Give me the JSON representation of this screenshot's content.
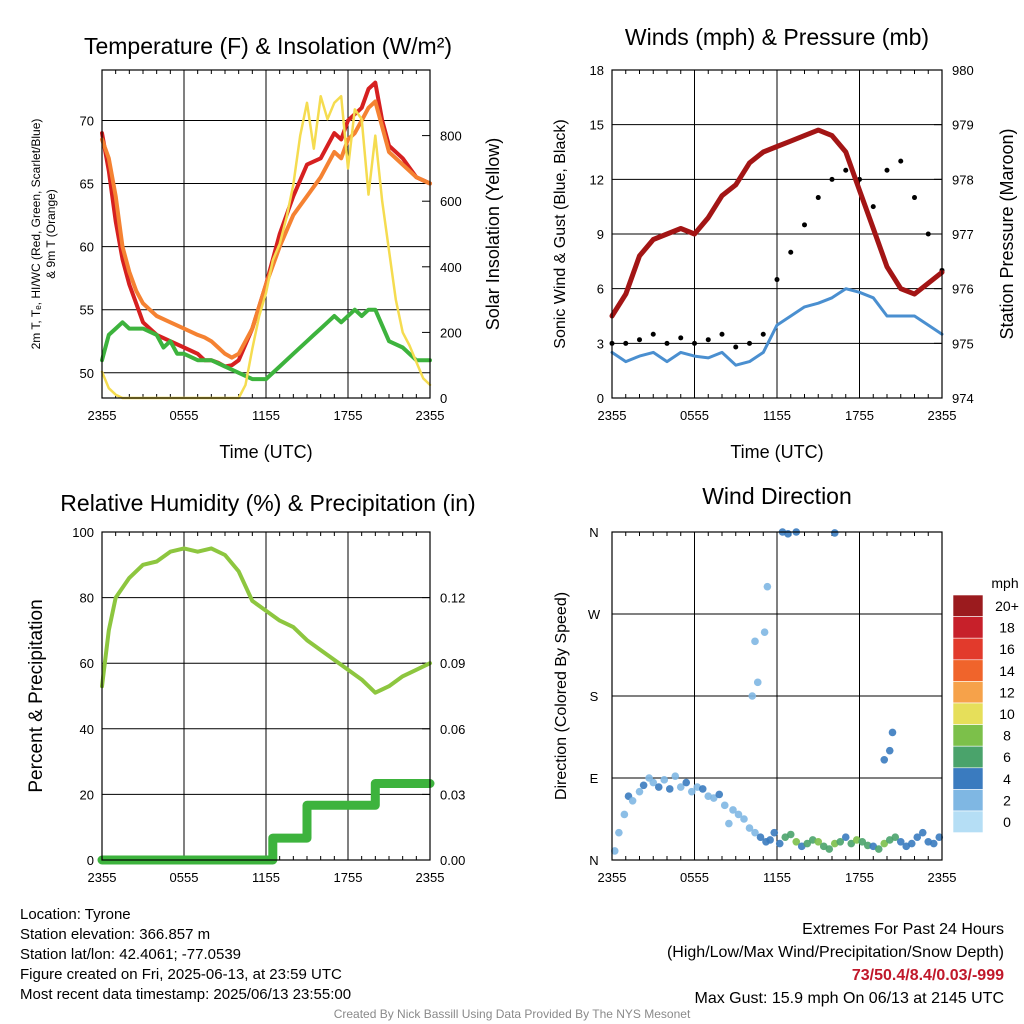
{
  "figure_title": "",
  "charts": {
    "temperature": {
      "title": "Temperature (F) & Insolation (W/m²)",
      "ylabel_left_line1": "2m T, Tₑ, HI/WC (Red, Green, Scarlet/Blue)",
      "ylabel_left_line2": "& 9m T (Orange)",
      "ylabel_right": "Solar Insolation (Yellow)",
      "xlabel": "Time (UTC)"
    },
    "winds": {
      "title": "Winds (mph) & Pressure (mb)",
      "ylabel_left": "Sonic Wind & Gust (Blue, Black)",
      "ylabel_right": "Station Pressure (Maroon)",
      "xlabel": "Time (UTC)"
    },
    "humidity": {
      "title": "Relative Humidity (%) & Precipitation (in)",
      "ylabel_left": "Percent & Precipitation"
    },
    "direction": {
      "title": "Wind Direction",
      "ylabel_left": "Direction (Colored By Speed)",
      "colorbar_title": "mph"
    }
  },
  "info_left": [
    "Location: Tyrone",
    "Station elevation: 366.857 m",
    "Station lat/lon: 42.4061; -77.0539",
    "Figure created on Fri, 2025-06-13, at 23:59 UTC",
    "Most recent data timestamp: 2025/06/13 23:55:00"
  ],
  "info_right": {
    "line1": "Extremes For Past 24 Hours",
    "line2": "(High/Low/Max Wind/Precipitation/Snow Depth)",
    "extremes": "73/50.4/8.4/0.03/-999",
    "max_gust": "Max Gust: 15.9 mph On 06/13 at 2145 UTC"
  },
  "footer": "Created By Nick Bassill Using Data Provided By The NYS Mesonet",
  "chart_data": [
    {
      "id": "temperature",
      "type": "line",
      "title": "Temperature (F) & Insolation (W/m²)",
      "xlabel": "Time (UTC)",
      "x_ticks": [
        "2355",
        "0555",
        "1155",
        "1755",
        "2355"
      ],
      "xlim": [
        0,
        24
      ],
      "ylim_left": [
        48,
        74
      ],
      "yticks_left": [
        50,
        55,
        60,
        65,
        70
      ],
      "ylim_right": [
        0,
        1000
      ],
      "yticks_right": [
        0,
        200,
        400,
        600,
        800
      ],
      "series": [
        {
          "name": "2m T",
          "color": "#d62020",
          "axis": "left",
          "x": [
            0,
            0.5,
            1,
            1.5,
            2,
            2.5,
            3,
            3.5,
            4,
            5,
            6,
            7,
            7.5,
            8,
            8.5,
            9,
            9.5,
            10,
            11,
            12,
            13,
            14,
            15,
            16,
            16.5,
            17,
            17.5,
            18,
            18.5,
            19,
            19.5,
            20,
            20.5,
            21,
            22,
            23,
            24
          ],
          "y": [
            69,
            66,
            62,
            59,
            57,
            55.5,
            54,
            53.5,
            53,
            52.5,
            52,
            51.5,
            51,
            51,
            50.8,
            50.5,
            50.6,
            51,
            53.5,
            57,
            61,
            64,
            66.5,
            67,
            68,
            69,
            68.5,
            70,
            70.5,
            71,
            72.5,
            73,
            70,
            68,
            67,
            65.5,
            65
          ]
        },
        {
          "name": "9m T",
          "color": "#f58232",
          "axis": "left",
          "x": [
            0,
            0.5,
            1,
            1.5,
            2,
            2.5,
            3,
            3.5,
            4,
            5,
            6,
            7,
            7.5,
            8,
            8.5,
            9,
            9.5,
            10,
            11,
            12,
            13,
            14,
            15,
            16,
            16.5,
            17,
            17.5,
            18,
            18.5,
            19,
            19.5,
            20,
            20.5,
            21,
            22,
            23,
            24
          ],
          "y": [
            68.5,
            67,
            64,
            60,
            58,
            56.5,
            55.5,
            55,
            54.5,
            54,
            53.5,
            53,
            52.8,
            52.5,
            52,
            51.5,
            51.2,
            51.5,
            53.5,
            57,
            60,
            62.5,
            64,
            65.5,
            66.5,
            67.5,
            67,
            68.5,
            69,
            70,
            71,
            71.5,
            69.5,
            67.5,
            66.5,
            65.5,
            65
          ]
        },
        {
          "name": "Td",
          "color": "#3db33d",
          "axis": "left",
          "x": [
            0,
            0.5,
            1,
            1.5,
            2,
            3,
            4,
            4.5,
            5,
            5.5,
            6,
            7,
            8,
            9,
            10,
            11,
            12,
            13,
            14,
            15,
            15.5,
            16,
            16.5,
            17,
            17.5,
            18,
            18.5,
            19,
            19.5,
            20,
            21,
            22,
            23,
            24
          ],
          "y": [
            51,
            53,
            53.5,
            54,
            53.5,
            53.5,
            53,
            52,
            52.5,
            51.5,
            51.5,
            51,
            51,
            50.5,
            50,
            49.5,
            49.5,
            50.5,
            51.5,
            52.5,
            53,
            53.5,
            54,
            54.5,
            54,
            54.5,
            55,
            54.5,
            55,
            55,
            52.5,
            52,
            51,
            51
          ]
        },
        {
          "name": "Solar Insolation",
          "color": "#f5dc50",
          "axis": "right",
          "x": [
            0,
            0.5,
            1,
            1.5,
            2,
            10,
            10.5,
            11,
            11.5,
            12,
            12.5,
            13,
            13.5,
            14,
            14.5,
            15,
            15.5,
            16,
            16.5,
            17,
            17.5,
            18,
            18.5,
            19,
            19.5,
            20,
            20.5,
            21,
            21.5,
            22,
            22.5,
            23,
            23.5,
            24
          ],
          "y": [
            80,
            30,
            10,
            0,
            0,
            0,
            40,
            150,
            250,
            320,
            420,
            470,
            550,
            650,
            800,
            900,
            760,
            920,
            850,
            900,
            920,
            700,
            880,
            850,
            620,
            800,
            600,
            450,
            300,
            200,
            160,
            110,
            60,
            40
          ]
        }
      ]
    },
    {
      "id": "winds",
      "type": "line",
      "title": "Winds (mph) & Pressure (mb)",
      "xlabel": "Time (UTC)",
      "x_ticks": [
        "2355",
        "0555",
        "1155",
        "1755",
        "2355"
      ],
      "xlim": [
        0,
        24
      ],
      "ylim_left": [
        0,
        18
      ],
      "yticks_left": [
        0,
        3,
        6,
        9,
        12,
        15,
        18
      ],
      "ylim_right": [
        974,
        980
      ],
      "yticks_right": [
        974,
        975,
        976,
        977,
        978,
        979,
        980
      ],
      "series": [
        {
          "name": "Sonic Wind",
          "color": "#4a8fd0",
          "axis": "left",
          "x": [
            0,
            1,
            2,
            3,
            4,
            5,
            6,
            7,
            8,
            9,
            10,
            11,
            12,
            13,
            14,
            15,
            16,
            17,
            18,
            19,
            20,
            21,
            22,
            23,
            24
          ],
          "y": [
            2.5,
            2,
            2.3,
            2.5,
            2,
            2.5,
            2.3,
            2.2,
            2.5,
            1.8,
            2,
            2.5,
            4,
            4.5,
            5,
            5.2,
            5.5,
            6,
            5.8,
            5.5,
            4.5,
            4.5,
            4.5,
            4,
            3.5
          ]
        },
        {
          "name": "Gust",
          "color": "#000000",
          "axis": "left",
          "style": "points",
          "x": [
            0,
            1,
            2,
            3,
            4,
            5,
            6,
            7,
            8,
            9,
            10,
            11,
            12,
            13,
            14,
            15,
            16,
            17,
            18,
            19,
            20,
            21,
            22,
            23,
            24
          ],
          "y": [
            3,
            3,
            3.2,
            3.5,
            3,
            3.3,
            3,
            3.2,
            3.5,
            2.8,
            3,
            3.5,
            6.5,
            8,
            9.5,
            11,
            12,
            12.5,
            12,
            10.5,
            12.5,
            13,
            11,
            9,
            7
          ]
        },
        {
          "name": "Station Pressure",
          "color": "#a31515",
          "axis": "right",
          "x": [
            0,
            1,
            2,
            3,
            4,
            5,
            6,
            7,
            8,
            9,
            10,
            11,
            12,
            13,
            14,
            15,
            16,
            17,
            18,
            19,
            20,
            21,
            22,
            23,
            24
          ],
          "y": [
            975.5,
            975.9,
            976.6,
            976.9,
            977,
            977.1,
            977,
            977.3,
            977.7,
            977.9,
            978.3,
            978.5,
            978.6,
            978.7,
            978.8,
            978.9,
            978.8,
            978.5,
            977.8,
            977.1,
            976.4,
            976,
            975.9,
            976.1,
            976.3
          ]
        }
      ]
    },
    {
      "id": "humidity",
      "type": "line",
      "title": "Relative Humidity (%) & Precipitation (in)",
      "x_ticks": [
        "2355",
        "0555",
        "1155",
        "1755",
        "2355"
      ],
      "xlim": [
        0,
        24
      ],
      "ylim_left": [
        0,
        100
      ],
      "yticks_left": [
        0,
        20,
        40,
        60,
        80,
        100
      ],
      "ylim_right": [
        0,
        0.15
      ],
      "yticks_right": [
        "0.00",
        "0.03",
        "0.06",
        "0.09",
        "0.12"
      ],
      "series": [
        {
          "name": "Relative Humidity",
          "color": "#8dc63f",
          "axis": "left",
          "x": [
            0,
            0.5,
            1,
            2,
            3,
            4,
            5,
            6,
            7,
            8,
            9,
            10,
            11,
            12,
            13,
            14,
            15,
            16,
            17,
            18,
            19,
            20,
            21,
            22,
            23,
            24
          ],
          "y": [
            53,
            70,
            80,
            86,
            90,
            91,
            94,
            95,
            94,
            95,
            93,
            88,
            79,
            76,
            73,
            71,
            67,
            64,
            61,
            58,
            55,
            51,
            53,
            56,
            58,
            60
          ]
        },
        {
          "name": "Precipitation",
          "color": "#3db33d",
          "axis": "right",
          "x": [
            0,
            12.5,
            12.5,
            15,
            15,
            20,
            20,
            24
          ],
          "y": [
            0,
            0,
            0.01,
            0.01,
            0.025,
            0.025,
            0.035,
            0.035
          ]
        }
      ]
    },
    {
      "id": "direction",
      "type": "scatter",
      "title": "Wind Direction",
      "x_ticks": [
        "2355",
        "0555",
        "1155",
        "1755",
        "2355"
      ],
      "xlim": [
        0,
        24
      ],
      "ytick_labels": [
        "N",
        "E",
        "S",
        "W",
        "N"
      ],
      "ylim": [
        0,
        360
      ],
      "colorbar": {
        "labels": [
          "20+",
          "18",
          "16",
          "14",
          "12",
          "10",
          "8",
          "6",
          "4",
          "2",
          "0"
        ],
        "colors": [
          "#9b1b1e",
          "#c7202a",
          "#e23a2c",
          "#f0642b",
          "#f6a24a",
          "#e6df5a",
          "#7cc04a",
          "#4aa36b",
          "#3a7bbf",
          "#7fb7e3",
          "#b5def5"
        ]
      },
      "points": {
        "x": [
          0.2,
          0.5,
          0.9,
          1.2,
          1.5,
          2,
          2.3,
          2.7,
          3,
          3.4,
          3.8,
          4.2,
          4.6,
          5,
          5.4,
          5.8,
          6.2,
          6.6,
          7,
          7.4,
          7.8,
          8.2,
          8.5,
          8.8,
          9.2,
          9.6,
          10,
          10.4,
          10.8,
          11.2,
          11.5,
          11.8,
          12.2,
          12.6,
          13,
          13.4,
          13.8,
          14.2,
          14.6,
          15,
          15.4,
          15.8,
          16.2,
          16.6,
          17,
          17.4,
          17.8,
          18.2,
          18.6,
          19,
          19.4,
          19.8,
          20.2,
          20.6,
          21,
          21.4,
          21.8,
          22.2,
          22.6,
          23,
          23.4,
          23.8,
          12.4,
          12.8,
          13.4,
          16.2,
          10.6,
          10.2,
          10.4,
          11.1,
          11.3,
          19.8,
          20.2,
          20.4
        ],
        "y": [
          10,
          30,
          50,
          70,
          65,
          75,
          82,
          90,
          85,
          80,
          88,
          78,
          92,
          80,
          85,
          75,
          80,
          78,
          70,
          68,
          72,
          60,
          40,
          55,
          50,
          45,
          35,
          30,
          25,
          20,
          22,
          30,
          18,
          25,
          28,
          20,
          15,
          18,
          22,
          20,
          15,
          12,
          18,
          20,
          25,
          18,
          22,
          20,
          16,
          15,
          12,
          18,
          22,
          25,
          20,
          15,
          18,
          25,
          30,
          20,
          18,
          25,
          360,
          358,
          360,
          359,
          195,
          180,
          240,
          250,
          300,
          110,
          120,
          140
        ],
        "speeds": [
          1,
          2,
          1,
          3,
          2,
          2,
          3,
          2,
          2,
          4,
          2,
          3,
          2,
          2,
          3,
          2,
          2,
          3,
          2,
          2,
          3,
          2,
          1,
          1,
          2,
          2,
          1,
          1,
          3,
          4,
          3,
          4,
          4,
          5,
          6,
          7,
          4,
          5,
          6,
          7,
          6,
          5,
          7,
          6,
          4,
          5,
          7,
          6,
          6,
          4,
          5,
          7,
          6,
          5,
          4,
          4,
          3,
          4,
          3,
          4,
          4,
          4,
          4,
          4,
          4,
          4,
          2,
          2,
          1,
          1,
          2,
          3,
          3,
          3
        ]
      }
    }
  ]
}
